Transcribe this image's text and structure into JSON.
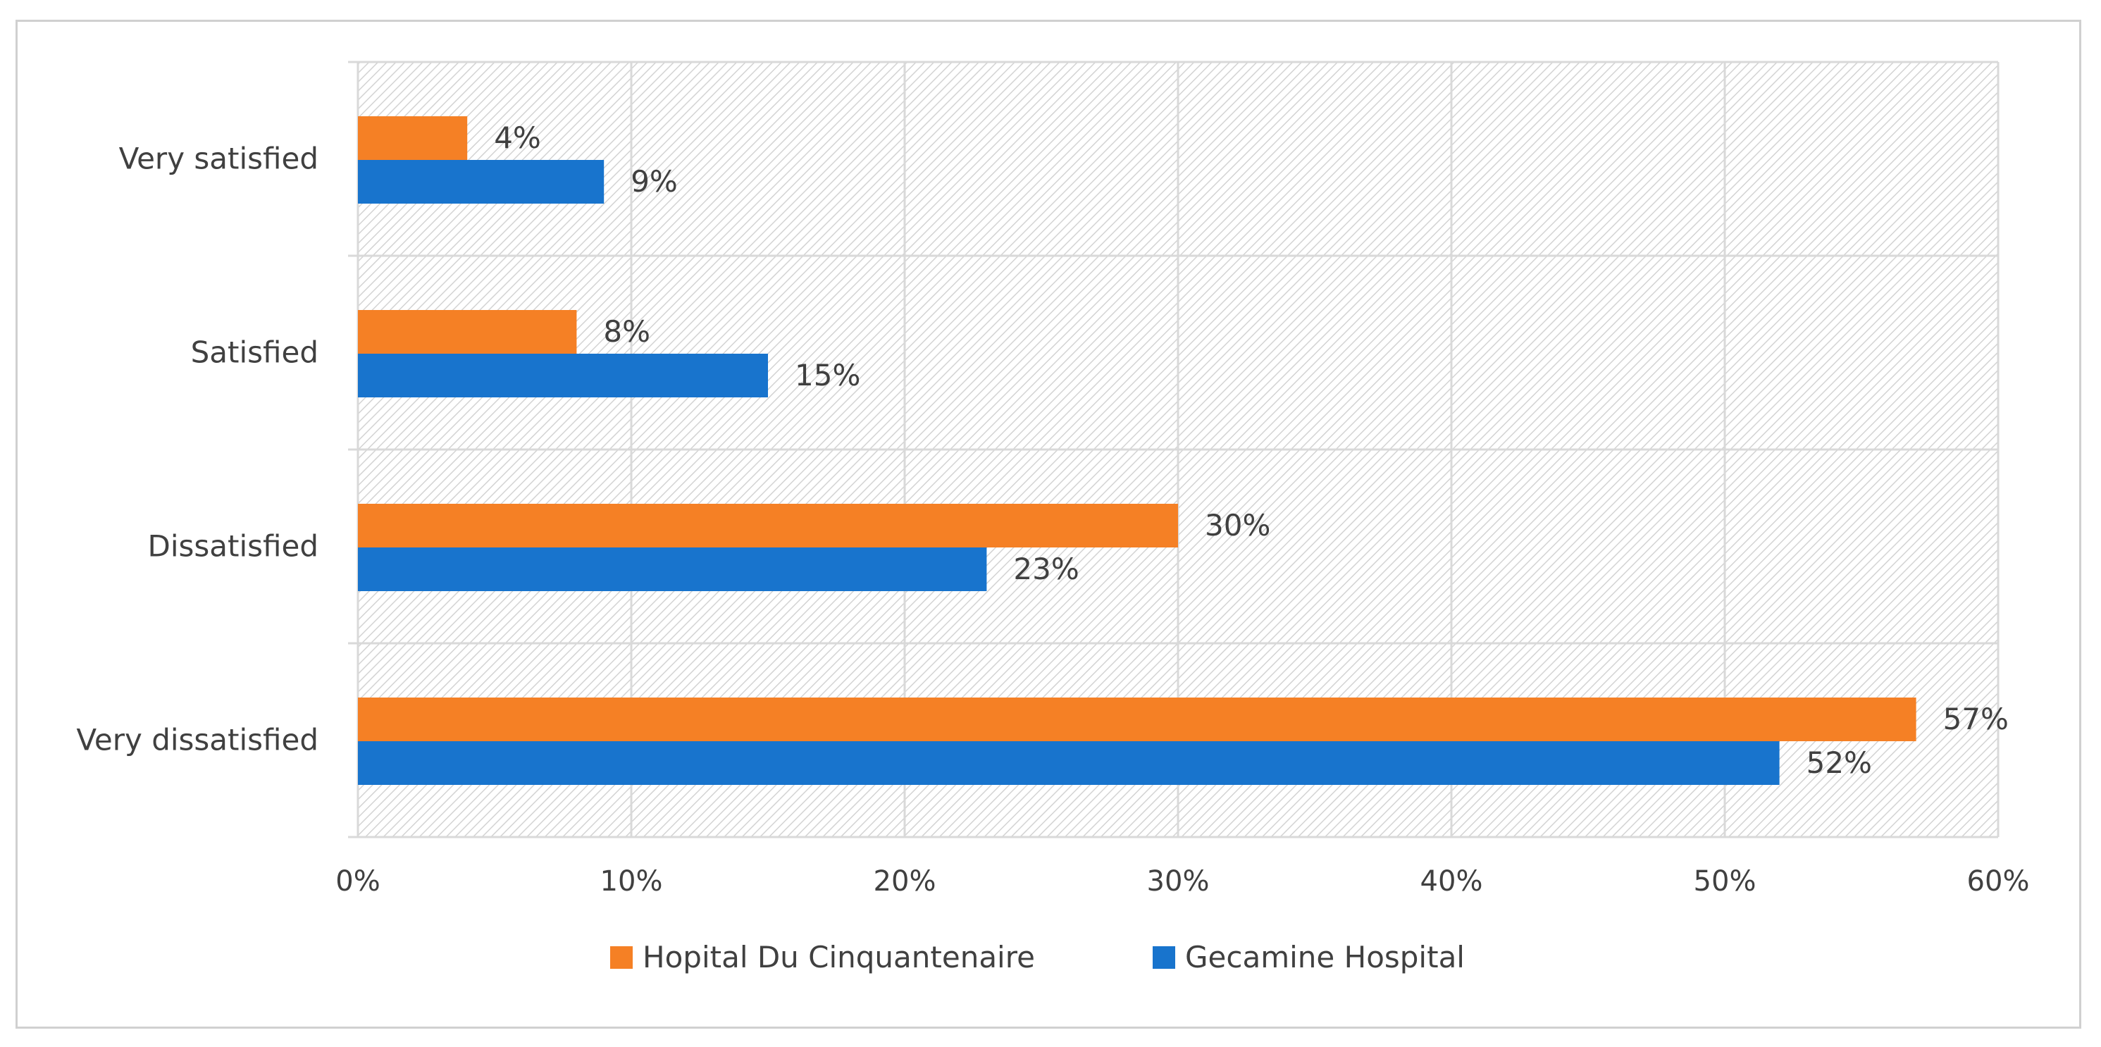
{
  "chart_data": {
    "type": "bar",
    "orientation": "horizontal",
    "title": "",
    "xlabel": "",
    "ylabel": "",
    "categories": [
      "Very satisfied",
      "Satisfied",
      "Dissatisfied",
      "Very dissatisfied"
    ],
    "series": [
      {
        "name": "Hopital Du Cinquantenaire",
        "color": "#F58025",
        "values": [
          4,
          8,
          30,
          57
        ]
      },
      {
        "name": "Gecamine Hospital",
        "color": "#1874CD",
        "values": [
          9,
          15,
          23,
          52
        ]
      }
    ],
    "data_labels": [
      [
        "4%",
        "8%",
        "30%",
        "57%"
      ],
      [
        "9%",
        "15%",
        "23%",
        "52%"
      ]
    ],
    "xlim": [
      0,
      60
    ],
    "x_ticks": [
      0,
      10,
      20,
      30,
      40,
      50,
      60
    ],
    "x_tick_labels": [
      "0%",
      "10%",
      "20%",
      "30%",
      "40%",
      "50%",
      "60%"
    ],
    "grid": true,
    "legend_position": "bottom",
    "colors": {
      "grid": "#d9d9d9",
      "hatch": "#d3d3d3",
      "text": "#404040"
    }
  }
}
